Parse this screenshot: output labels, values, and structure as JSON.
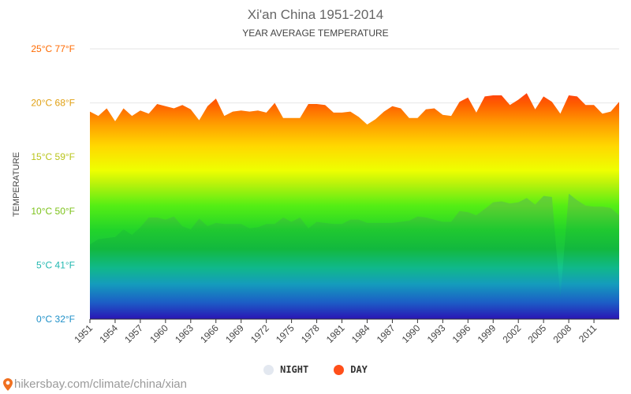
{
  "chart_data": {
    "type": "area",
    "title": "Xi'an China 1951-2014",
    "subtitle": "YEAR AVERAGE TEMPERATURE",
    "ylabel": "TEMPERATURE",
    "ylim": [
      0,
      25
    ],
    "yticks": [
      {
        "value": 0,
        "label": "0°C 32°F",
        "color": "#1e90c8"
      },
      {
        "value": 5,
        "label": "5°C 41°F",
        "color": "#22b8b0"
      },
      {
        "value": 10,
        "label": "10°C 50°F",
        "color": "#7cc21a"
      },
      {
        "value": 15,
        "label": "15°C 59°F",
        "color": "#b9c41a"
      },
      {
        "value": 20,
        "label": "20°C 68°F",
        "color": "#e0a012"
      },
      {
        "value": 25,
        "label": "25°C 77°F",
        "color": "#ff6a00"
      }
    ],
    "xticks": [
      "1951",
      "1954",
      "1957",
      "1960",
      "1963",
      "1966",
      "1969",
      "1972",
      "1975",
      "1978",
      "1981",
      "1984",
      "1987",
      "1990",
      "1993",
      "1996",
      "1999",
      "2002",
      "2005",
      "2008",
      "2011"
    ],
    "x": [
      1951,
      1952,
      1953,
      1954,
      1955,
      1956,
      1957,
      1958,
      1959,
      1960,
      1961,
      1962,
      1963,
      1964,
      1965,
      1966,
      1967,
      1968,
      1969,
      1970,
      1971,
      1972,
      1973,
      1974,
      1975,
      1976,
      1977,
      1978,
      1979,
      1980,
      1981,
      1982,
      1983,
      1984,
      1985,
      1986,
      1987,
      1988,
      1989,
      1990,
      1991,
      1992,
      1993,
      1994,
      1995,
      1996,
      1997,
      1998,
      1999,
      2000,
      2001,
      2002,
      2003,
      2004,
      2005,
      2006,
      2007,
      2008,
      2009,
      2010,
      2011,
      2012,
      2013,
      2014
    ],
    "series": [
      {
        "name": "DAY",
        "values": [
          19.2,
          18.8,
          19.5,
          18.3,
          19.5,
          18.8,
          19.3,
          19.0,
          19.9,
          19.7,
          19.5,
          19.8,
          19.4,
          18.4,
          19.7,
          20.4,
          18.8,
          19.2,
          19.3,
          19.2,
          19.3,
          19.1,
          20.0,
          18.6,
          18.6,
          18.6,
          19.9,
          19.9,
          19.8,
          19.1,
          19.1,
          19.2,
          18.7,
          18.0,
          18.5,
          19.2,
          19.7,
          19.5,
          18.6,
          18.6,
          19.4,
          19.5,
          18.9,
          18.8,
          20.1,
          20.5,
          19.1,
          20.6,
          20.7,
          20.7,
          19.8,
          20.3,
          20.9,
          19.4,
          20.6,
          20.1,
          19.0,
          20.7,
          20.6,
          19.8,
          19.8,
          19.0,
          19.2,
          20.1
        ]
      },
      {
        "name": "NIGHT",
        "values": [
          6.9,
          7.4,
          7.5,
          7.6,
          8.3,
          7.8,
          8.5,
          9.4,
          9.4,
          9.2,
          9.5,
          8.6,
          8.3,
          9.3,
          8.6,
          8.9,
          8.8,
          8.8,
          8.8,
          8.4,
          8.5,
          8.8,
          8.8,
          9.4,
          9.0,
          9.4,
          8.4,
          9.0,
          8.9,
          8.8,
          8.8,
          9.2,
          9.2,
          8.9,
          8.9,
          8.9,
          8.9,
          9.0,
          9.1,
          9.5,
          9.4,
          9.2,
          9.0,
          9.0,
          10.0,
          9.9,
          9.6,
          10.2,
          10.8,
          10.9,
          10.7,
          10.8,
          11.2,
          10.6,
          11.4,
          11.3,
          2.0,
          11.6,
          11.0,
          10.5,
          10.4,
          10.4,
          10.3,
          9.6
        ]
      }
    ],
    "legend": [
      {
        "name": "NIGHT",
        "color": "#e3e8f0"
      },
      {
        "name": "DAY",
        "color": "#ff4f1a"
      }
    ],
    "legend_position": "bottom",
    "grid": true
  },
  "source": {
    "text": "hikersbay.com/climate/china/xian"
  }
}
